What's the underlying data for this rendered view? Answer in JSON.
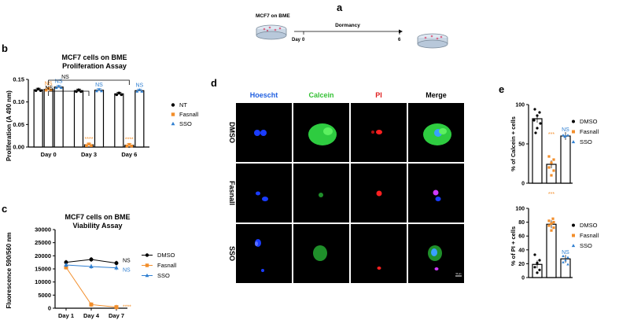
{
  "panel_a": {
    "letter": "a",
    "dish_label": "MCF7 on BME",
    "arrow_label": "Dormancy",
    "day_label": "Day",
    "day_start": "0",
    "day_end": "6"
  },
  "panel_b": {
    "letter": "b",
    "chart_data": {
      "type": "bar",
      "title": "MCF7 cells on BME",
      "subtitle": "Proliferation Assay",
      "ylabel": "Proliferation (A 490 nm)",
      "xlabel": "",
      "categories": [
        "Day 0",
        "Day 3",
        "Day 6"
      ],
      "ylim": [
        0,
        0.15
      ],
      "yticks": [
        "0.00",
        "0.05",
        "0.10",
        "0.15"
      ],
      "series": [
        {
          "name": "NT",
          "values": [
            0.127,
            0.125,
            0.118
          ],
          "color": "#000000"
        },
        {
          "name": "Fasnall",
          "values": [
            0.128,
            0.005,
            0.004
          ],
          "color": "#f28e2b"
        },
        {
          "name": "SSO",
          "values": [
            0.133,
            0.126,
            0.125
          ],
          "color": "#2f7fd1"
        }
      ],
      "annotations": [
        {
          "text": "NS",
          "group": 0,
          "series": 1,
          "color": "#f28e2b"
        },
        {
          "text": "NS",
          "group": 0,
          "series": 2,
          "color": "#2f7fd1"
        },
        {
          "text": "NS",
          "group": 1,
          "series": 2,
          "color": "#2f7fd1"
        },
        {
          "text": "NS",
          "group": 2,
          "series": 2,
          "color": "#2f7fd1"
        },
        {
          "text": "****",
          "group": 1,
          "series": 1,
          "color": "#f28e2b"
        },
        {
          "text": "****",
          "group": 2,
          "series": 1,
          "color": "#f28e2b"
        }
      ],
      "brackets": [
        {
          "text": "NS",
          "from_group": 0,
          "to_group": 1
        },
        {
          "text": "NS",
          "from_group": 0,
          "to_group": 2
        }
      ],
      "legend_position": "right"
    }
  },
  "panel_c": {
    "letter": "c",
    "chart_data": {
      "type": "line",
      "title": "MCF7 cells on BME",
      "subtitle": "Viability Assay",
      "ylabel": "Fluorescence 590/560 nm",
      "xlabel": "",
      "categories": [
        "Day 1",
        "Day 4",
        "Day 7"
      ],
      "ylim": [
        0,
        30000
      ],
      "yticks": [
        "0",
        "5000",
        "10000",
        "15000",
        "20000",
        "25000",
        "30000"
      ],
      "series": [
        {
          "name": "DMSO",
          "values": [
            17500,
            18600,
            17200
          ],
          "color": "#000000",
          "marker": "circle"
        },
        {
          "name": "Fasnall",
          "values": [
            15600,
            1400,
            400
          ],
          "color": "#f28e2b",
          "marker": "square"
        },
        {
          "name": "SSO",
          "values": [
            16500,
            15900,
            15400
          ],
          "color": "#2f7fd1",
          "marker": "triangle"
        }
      ],
      "end_labels": [
        {
          "text": "NS",
          "series": 0,
          "color": "#000000"
        },
        {
          "text": "NS",
          "series": 2,
          "color": "#2f7fd1"
        },
        {
          "text": "****",
          "series": 1,
          "color": "#f28e2b"
        }
      ],
      "legend_position": "right"
    }
  },
  "panel_d": {
    "letter": "d",
    "columns": [
      {
        "label": "Hoescht",
        "color": "#1f5fe0"
      },
      {
        "label": "Calcein",
        "color": "#35c135"
      },
      {
        "label": "PI",
        "color": "#e02020"
      },
      {
        "label": "Merge",
        "color": "#000000"
      }
    ],
    "rows": [
      "DMSO",
      "Fasnall",
      "SSO"
    ],
    "scalebar_label": "50 µm"
  },
  "panel_e_top": {
    "letter": "e",
    "chart_data": {
      "type": "bar",
      "ylabel": "% of Calcein + cells",
      "categories": [
        "DMSO",
        "Fasnall",
        "SSO"
      ],
      "ylim": [
        0,
        100
      ],
      "yticks": [
        "0",
        "50",
        "100"
      ],
      "values": [
        82,
        24,
        60
      ],
      "colors": [
        "#000000",
        "#f28e2b",
        "#2f7fd1"
      ],
      "annotations": [
        {
          "text": "***",
          "index": 1,
          "color": "#f28e2b"
        },
        {
          "text": "NS",
          "index": 2,
          "color": "#2f7fd1"
        }
      ],
      "legend": [
        "DMSO",
        "Fasnall",
        "SSO"
      ],
      "legend_position": "right"
    }
  },
  "panel_e_bottom": {
    "chart_data": {
      "type": "bar",
      "ylabel": "% of PI + cells",
      "categories": [
        "DMSO",
        "Fasnall",
        "SSO"
      ],
      "ylim": [
        0,
        100
      ],
      "yticks": [
        "0",
        "20",
        "40",
        "60",
        "80",
        "100"
      ],
      "values": [
        19,
        77,
        27
      ],
      "colors": [
        "#000000",
        "#f28e2b",
        "#2f7fd1"
      ],
      "annotations": [
        {
          "text": "***",
          "index": 1,
          "color": "#f28e2b"
        },
        {
          "text": "NS",
          "index": 2,
          "color": "#2f7fd1"
        }
      ],
      "legend": [
        "DMSO",
        "Fasnall",
        "SSO"
      ],
      "legend_position": "right"
    }
  }
}
